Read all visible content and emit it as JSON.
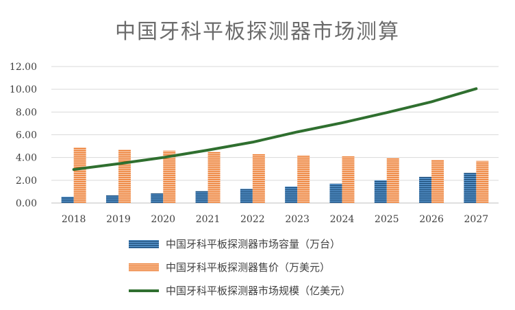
{
  "chart_data": {
    "type": "bar",
    "title": "中国牙科平板探测器市场测算",
    "categories": [
      "2018",
      "2019",
      "2020",
      "2021",
      "2022",
      "2023",
      "2024",
      "2025",
      "2026",
      "2027"
    ],
    "ylim": [
      0,
      12
    ],
    "yticks": [
      "0.00",
      "2.00",
      "4.00",
      "6.00",
      "8.00",
      "10.00",
      "12.00"
    ],
    "ytick_values": [
      0,
      2,
      4,
      6,
      8,
      10,
      12
    ],
    "grid": true,
    "legend_position": "bottom",
    "series": [
      {
        "name": "中国牙科平板探测器市场容量（万台）",
        "type": "bar",
        "values": [
          0.55,
          0.68,
          0.85,
          1.05,
          1.25,
          1.45,
          1.7,
          2.0,
          2.3,
          2.65
        ],
        "color": "#2e75b6"
      },
      {
        "name": "中国牙科平板探测器售价（万美元）",
        "type": "bar",
        "values": [
          4.9,
          4.7,
          4.6,
          4.5,
          4.3,
          4.2,
          4.1,
          3.95,
          3.8,
          3.7
        ],
        "color": "#ed7d31"
      },
      {
        "name": "中国牙科平板探测器市场规模（亿美元）",
        "type": "line",
        "values": [
          2.95,
          3.45,
          4.0,
          4.65,
          5.35,
          6.25,
          7.05,
          7.95,
          8.9,
          10.05
        ],
        "color": "#2f6f2f"
      }
    ]
  }
}
